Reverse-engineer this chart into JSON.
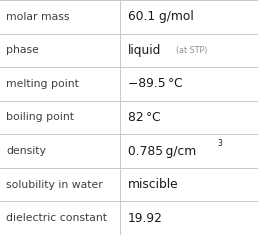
{
  "rows": [
    {
      "label": "molar mass",
      "value": "60.1 g/mol",
      "extra": null,
      "super": null
    },
    {
      "label": "phase",
      "value": "liquid",
      "extra": "(at STP)",
      "super": null
    },
    {
      "label": "melting point",
      "value": "−89.5 °C",
      "extra": null,
      "super": null
    },
    {
      "label": "boiling point",
      "value": "82 °C",
      "extra": null,
      "super": null
    },
    {
      "label": "density",
      "value": "0.785 g/cm",
      "extra": null,
      "super": "3"
    },
    {
      "label": "solubility in water",
      "value": "miscible",
      "extra": null,
      "super": null
    },
    {
      "label": "dielectric constant",
      "value": "19.92",
      "extra": null,
      "super": null
    }
  ],
  "bg_color": "#ffffff",
  "line_color": "#c8c8c8",
  "label_color": "#404040",
  "value_color": "#1a1a1a",
  "extra_color": "#909090",
  "col_split": 0.465,
  "label_fontsize": 7.8,
  "value_fontsize": 8.8,
  "extra_fontsize": 5.8,
  "super_fontsize": 5.5
}
